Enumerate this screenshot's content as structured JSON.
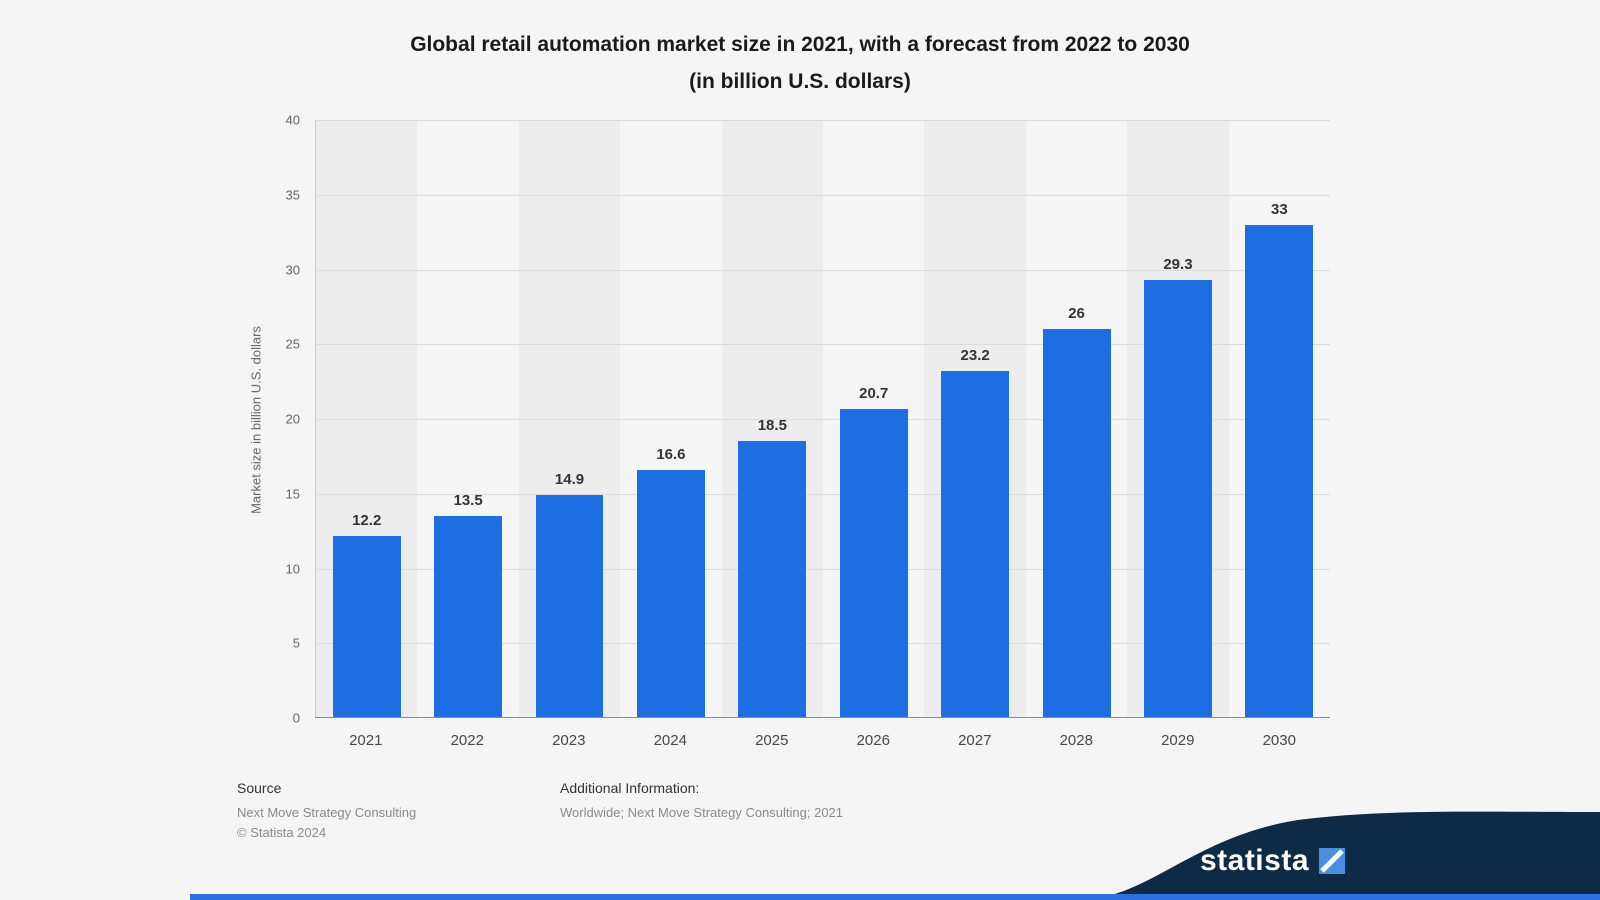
{
  "title": {
    "line1": "Global retail automation market size in 2021, with a forecast from 2022 to 2030",
    "line2": "(in billion U.S. dollars)"
  },
  "chart_data": {
    "type": "bar",
    "categories": [
      "2021",
      "2022",
      "2023",
      "2024",
      "2025",
      "2026",
      "2027",
      "2028",
      "2029",
      "2030"
    ],
    "values": [
      12.2,
      13.5,
      14.9,
      16.6,
      18.5,
      20.7,
      23.2,
      26,
      29.3,
      33
    ],
    "value_labels": [
      "12.2",
      "13.5",
      "14.9",
      "16.6",
      "18.5",
      "20.7",
      "23.2",
      "26",
      "29.3",
      "33"
    ],
    "title": "Global retail automation market size in 2021, with a forecast from 2022 to 2030 (in billion U.S. dollars)",
    "xlabel": "",
    "ylabel": "Market size in billion U.S. dollars",
    "ylim": [
      0,
      40
    ],
    "yticks": [
      0,
      5,
      10,
      15,
      20,
      25,
      30,
      35,
      40
    ],
    "grid": true,
    "legend": "none",
    "bar_color": "#1d6ee2"
  },
  "footer": {
    "source_label": "Source",
    "source_line1": "Next Move Strategy Consulting",
    "source_line2": "© Statista 2024",
    "additional_label": "Additional Information:",
    "additional_text": "Worldwide; Next Move Strategy Consulting; 2021"
  },
  "branding": {
    "logo_text": "statista",
    "navy_color": "#0d2a47",
    "line_color": "#2e6fe0",
    "mark_color": "#4a8ee0"
  }
}
